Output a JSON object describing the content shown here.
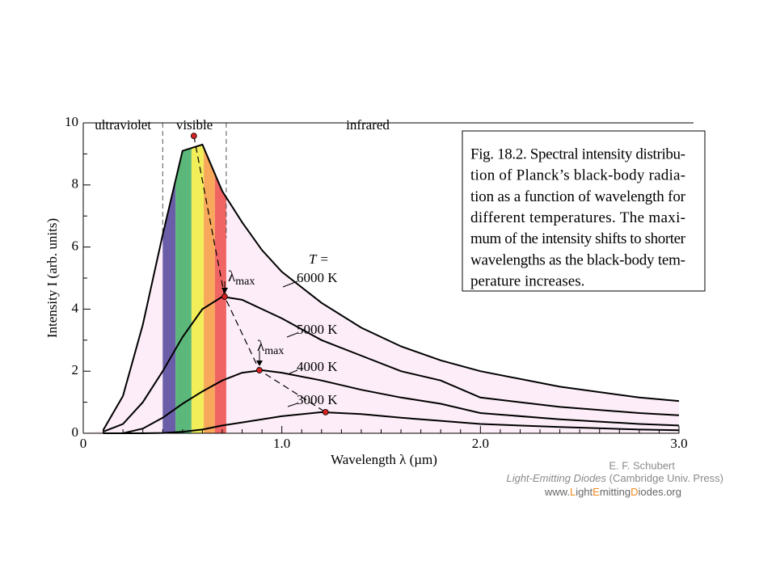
{
  "chart_data": {
    "type": "line",
    "xlabel": "Wavelength  λ  (µm)",
    "ylabel": "Intensity  I  (arb. units)",
    "x": [
      0.1,
      0.2,
      0.3,
      0.4,
      0.5,
      0.6,
      0.7,
      0.8,
      0.9,
      1.0,
      1.2,
      1.4,
      1.6,
      1.8,
      2.0,
      2.4,
      2.8,
      3.0
    ],
    "series": [
      {
        "name": "6000 K",
        "color": "#000000",
        "values": [
          0.1,
          1.2,
          3.5,
          6.4,
          9.1,
          9.3,
          7.8,
          6.8,
          5.9,
          5.2,
          4.2,
          3.4,
          2.8,
          2.35,
          2.0,
          1.5,
          1.15,
          1.04
        ]
      },
      {
        "name": "5000 K",
        "color": "#000000",
        "values": [
          0.05,
          0.3,
          1.0,
          2.0,
          3.1,
          4.0,
          4.4,
          4.3,
          4.0,
          3.7,
          3.0,
          2.5,
          2.0,
          1.7,
          1.15,
          0.85,
          0.65,
          0.58
        ]
      },
      {
        "name": "4000 K",
        "color": "#000000",
        "values": [
          0,
          0,
          0.15,
          0.5,
          0.95,
          1.35,
          1.7,
          1.95,
          2.03,
          1.95,
          1.7,
          1.4,
          1.15,
          0.95,
          0.65,
          0.45,
          0.3,
          0.25
        ]
      },
      {
        "name": "3000 K",
        "color": "#000000",
        "values": [
          0,
          0,
          0,
          0.01,
          0.05,
          0.12,
          0.25,
          0.35,
          0.45,
          0.55,
          0.68,
          0.62,
          0.5,
          0.4,
          0.3,
          0.2,
          0.12,
          0.1
        ]
      }
    ],
    "xlim": [
      0,
      3
    ],
    "ylim": [
      0,
      10
    ],
    "xticks": [
      0,
      {
        "value": 1,
        "label": "1.0"
      },
      {
        "value": 2,
        "label": "2.0"
      },
      {
        "value": 3,
        "label": "3.0"
      }
    ],
    "xminor_ticks": [
      0.1,
      0.2,
      0.3,
      0.4,
      0.5,
      0.6,
      0.7,
      0.8,
      0.9,
      1.1,
      1.2,
      1.3,
      1.4,
      1.5,
      1.6,
      1.7,
      1.8,
      1.9,
      2.1,
      2.2,
      2.3,
      2.4,
      2.5,
      2.6,
      2.7,
      2.8,
      2.9
    ],
    "yticks": [
      0,
      2,
      4,
      6,
      8,
      10
    ],
    "yminor_ticks": [
      1,
      3,
      5,
      7,
      9
    ],
    "temperature_label": "T =",
    "lambda_max": {
      "symbol": "λ",
      "subscript": "max",
      "color": "#d42020",
      "x": [
        0.557,
        0.712,
        0.887,
        1.22
      ],
      "y": [
        9.58,
        4.4,
        2.03,
        0.68
      ]
    },
    "regions": [
      "ultraviolet",
      "visible",
      "infrared"
    ],
    "region_bounds": [
      0.4,
      0.72
    ],
    "spectrum_bands": [
      {
        "start": 0.4,
        "end": 0.465,
        "color": "#6b5ea8"
      },
      {
        "start": 0.465,
        "end": 0.545,
        "color": "#5cb87a"
      },
      {
        "start": 0.545,
        "end": 0.607,
        "color": "#f2ee5a"
      },
      {
        "start": 0.607,
        "end": 0.663,
        "color": "#f7a85a"
      },
      {
        "start": 0.663,
        "end": 0.72,
        "color": "#f06464"
      }
    ],
    "fill_color": "#fcedf8"
  },
  "caption": {
    "lines": [
      "Fig. 18.2. Spectral intensity distribu-",
      "tion of Planck’s black-body radia-",
      "tion as a function of wavelength for",
      "different temperatures. The maxi-",
      "mum of the intensity shifts to shorter",
      "wavelengths as the black-body tem-",
      "perature increases."
    ]
  },
  "credit": {
    "author": "E. F. Schubert",
    "book": "Light-Emitting Diodes",
    "publisher": " (Cambridge Univ. Press)",
    "url_parts": [
      "www.",
      "L",
      "ight",
      "E",
      "mitting",
      "D",
      "iodes",
      ".org"
    ]
  }
}
